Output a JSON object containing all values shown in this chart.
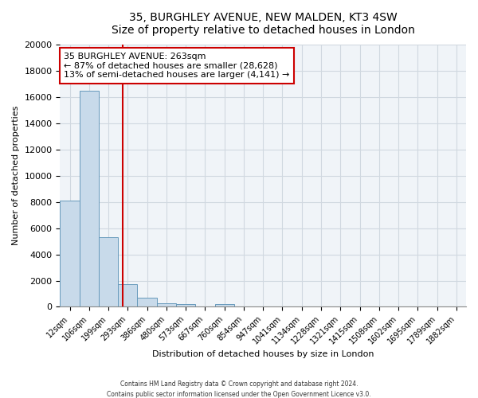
{
  "title": "35, BURGHLEY AVENUE, NEW MALDEN, KT3 4SW",
  "subtitle": "Size of property relative to detached houses in London",
  "xlabel": "Distribution of detached houses by size in London",
  "ylabel": "Number of detached properties",
  "bar_labels": [
    "12sqm",
    "106sqm",
    "199sqm",
    "293sqm",
    "386sqm",
    "480sqm",
    "573sqm",
    "667sqm",
    "760sqm",
    "854sqm",
    "947sqm",
    "1041sqm",
    "1134sqm",
    "1228sqm",
    "1321sqm",
    "1415sqm",
    "1508sqm",
    "1602sqm",
    "1695sqm",
    "1789sqm",
    "1882sqm"
  ],
  "bar_values": [
    8100,
    16500,
    5300,
    1750,
    700,
    280,
    220,
    0,
    200,
    0,
    0,
    0,
    0,
    0,
    0,
    0,
    0,
    0,
    0,
    0,
    0
  ],
  "bar_color": "#c8daea",
  "bar_edge_color": "#6699bb",
  "annotation_line1": "35 BURGHLEY AVENUE: 263sqm",
  "annotation_line2": "← 87% of detached houses are smaller (28,628)",
  "annotation_line3": "13% of semi-detached houses are larger (4,141) →",
  "ylim": [
    0,
    20000
  ],
  "yticks": [
    0,
    2000,
    4000,
    6000,
    8000,
    10000,
    12000,
    14000,
    16000,
    18000,
    20000
  ],
  "footer1": "Contains HM Land Registry data © Crown copyright and database right 2024.",
  "footer2": "Contains public sector information licensed under the Open Government Licence v3.0.",
  "bg_color": "#ffffff",
  "plot_bg_color": "#f0f4f8",
  "grid_color": "#d0d8e0"
}
